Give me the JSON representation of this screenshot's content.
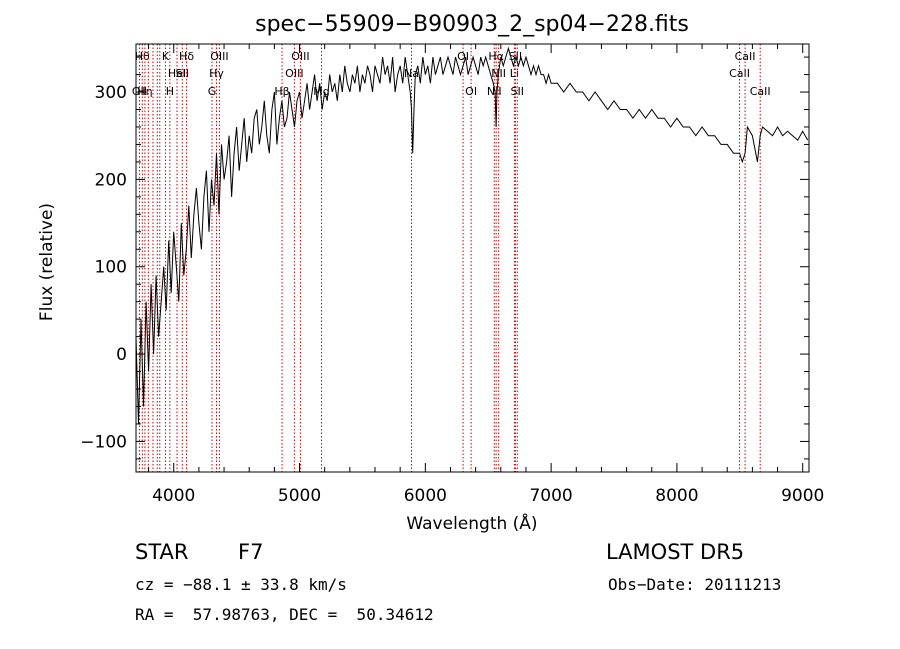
{
  "chart_data": {
    "type": "line",
    "title": "spec−55909−B90903_2_sp04−228.fits",
    "xlabel": "Wavelength (Å)",
    "ylabel": "Flux (relative)",
    "xlim": [
      3700,
      9050
    ],
    "ylim": [
      -135,
      355
    ],
    "xticks": [
      4000,
      5000,
      6000,
      7000,
      8000,
      9000
    ],
    "yticks": [
      -100,
      0,
      100,
      200,
      300
    ],
    "grid": false,
    "line_color": "#000000",
    "marker_color": "#cc0000",
    "series": [
      {
        "x": [
          3700,
          3720,
          3740,
          3760,
          3780,
          3800,
          3820,
          3840,
          3860,
          3880,
          3900,
          3920,
          3940,
          3960,
          3980,
          4000,
          4020,
          4040,
          4060,
          4080,
          4100,
          4120,
          4140,
          4160,
          4180,
          4200,
          4220,
          4240,
          4260,
          4280,
          4300,
          4320,
          4340,
          4360,
          4380,
          4400,
          4420,
          4440,
          4460,
          4480,
          4500,
          4520,
          4540,
          4560,
          4580,
          4600,
          4620,
          4640,
          4660,
          4680,
          4700,
          4720,
          4740,
          4760,
          4780,
          4800,
          4820,
          4840,
          4860,
          4880,
          4900,
          4920,
          4940,
          4960,
          4980,
          5000,
          5020,
          5040,
          5060,
          5080,
          5100,
          5120,
          5140,
          5160,
          5180,
          5200,
          5220,
          5240,
          5260,
          5280,
          5300,
          5320,
          5340,
          5360,
          5380,
          5400,
          5420,
          5440,
          5460,
          5480,
          5500,
          5520,
          5540,
          5560,
          5580,
          5600,
          5620,
          5640,
          5660,
          5680,
          5700,
          5720,
          5740,
          5760,
          5780,
          5800,
          5820,
          5840,
          5860,
          5880,
          5890,
          5900,
          5910,
          5920,
          5940,
          5960,
          5980,
          6000,
          6020,
          6040,
          6060,
          6080,
          6100,
          6120,
          6140,
          6160,
          6180,
          6200,
          6220,
          6240,
          6260,
          6280,
          6300,
          6320,
          6340,
          6360,
          6380,
          6400,
          6420,
          6440,
          6460,
          6480,
          6500,
          6520,
          6540,
          6555,
          6563,
          6570,
          6580,
          6600,
          6620,
          6640,
          6660,
          6680,
          6700,
          6720,
          6740,
          6760,
          6780,
          6800,
          6820,
          6840,
          6860,
          6880,
          6900,
          6920,
          6940,
          6960,
          6980,
          7000,
          7050,
          7100,
          7150,
          7200,
          7250,
          7300,
          7350,
          7400,
          7450,
          7500,
          7550,
          7600,
          7650,
          7700,
          7750,
          7800,
          7850,
          7900,
          7950,
          8000,
          8050,
          8100,
          8150,
          8200,
          8250,
          8300,
          8350,
          8400,
          8450,
          8498,
          8520,
          8542,
          8560,
          8600,
          8640,
          8662,
          8680,
          8720,
          8760,
          8800,
          8840,
          8880,
          8920,
          8960,
          9000,
          9020,
          9040
        ],
        "values": [
          20,
          -80,
          40,
          -60,
          60,
          -20,
          80,
          0,
          90,
          20,
          60,
          100,
          50,
          130,
          70,
          140,
          100,
          60,
          150,
          90,
          120,
          170,
          110,
          160,
          190,
          150,
          120,
          180,
          210,
          140,
          200,
          170,
          230,
          160,
          240,
          200,
          220,
          250,
          180,
          230,
          260,
          210,
          240,
          270,
          220,
          250,
          230,
          270,
          280,
          240,
          260,
          290,
          250,
          230,
          280,
          300,
          240,
          270,
          290,
          260,
          270,
          300,
          280,
          260,
          290,
          300,
          270,
          290,
          310,
          280,
          300,
          320,
          290,
          310,
          280,
          300,
          290,
          320,
          300,
          310,
          290,
          320,
          300,
          330,
          310,
          300,
          320,
          310,
          330,
          300,
          320,
          310,
          330,
          320,
          300,
          330,
          320,
          310,
          340,
          320,
          330,
          310,
          340,
          300,
          320,
          330,
          310,
          340,
          320,
          300,
          280,
          230,
          280,
          320,
          330,
          310,
          340,
          320,
          330,
          310,
          340,
          320,
          330,
          340,
          320,
          330,
          340,
          330,
          320,
          340,
          330,
          320,
          330,
          340,
          320,
          330,
          340,
          330,
          320,
          340,
          330,
          340,
          330,
          320,
          310,
          300,
          260,
          300,
          320,
          340,
          330,
          340,
          350,
          340,
          330,
          340,
          330,
          340,
          330,
          340,
          330,
          320,
          330,
          320,
          330,
          320,
          320,
          310,
          320,
          310,
          310,
          300,
          310,
          300,
          300,
          290,
          300,
          290,
          280,
          290,
          280,
          280,
          270,
          280,
          270,
          280,
          270,
          270,
          260,
          270,
          260,
          260,
          250,
          260,
          250,
          250,
          240,
          240,
          230,
          230,
          220,
          230,
          260,
          250,
          220,
          250,
          260,
          255,
          250,
          260,
          250,
          255,
          250,
          245,
          255,
          250,
          245
        ]
      }
    ],
    "line_markers": [
      {
        "lambda": 3727,
        "label": "OII",
        "tier": 2
      },
      {
        "lambda": 3750,
        "label": "Hθ",
        "tier": 0
      },
      {
        "lambda": 3771,
        "label": "Hη",
        "tier": 2
      },
      {
        "lambda": 3798,
        "label": "",
        "tier": 0
      },
      {
        "lambda": 3835,
        "label": "",
        "tier": 0
      },
      {
        "lambda": 3869,
        "label": "",
        "tier": 0
      },
      {
        "lambda": 3889,
        "label": "",
        "tier": 0
      },
      {
        "lambda": 3934,
        "label": "K",
        "tier": 0
      },
      {
        "lambda": 3969,
        "label": "H",
        "tier": 2
      },
      {
        "lambda": 4026,
        "label": "HeI",
        "tier": 1
      },
      {
        "lambda": 4068,
        "label": "SII",
        "tier": 1
      },
      {
        "lambda": 4102,
        "label": "Hδ",
        "tier": 0
      },
      {
        "lambda": 4304,
        "label": "G",
        "tier": 2
      },
      {
        "lambda": 4340,
        "label": "Hγ",
        "tier": 1
      },
      {
        "lambda": 4363,
        "label": "OIII",
        "tier": 0
      },
      {
        "lambda": 4861,
        "label": "Hβ",
        "tier": 2
      },
      {
        "lambda": 4959,
        "label": "OIII",
        "tier": 1
      },
      {
        "lambda": 5007,
        "label": "OIII",
        "tier": 0
      },
      {
        "lambda": 5175,
        "label": "Mg",
        "tier": 2
      },
      {
        "lambda": 5890,
        "label": "Na",
        "tier": 1
      },
      {
        "lambda": 6300,
        "label": "OI",
        "tier": 0
      },
      {
        "lambda": 6364,
        "label": "OI",
        "tier": 2
      },
      {
        "lambda": 6548,
        "label": "NII",
        "tier": 2
      },
      {
        "lambda": 6563,
        "label": "Hα",
        "tier": 0
      },
      {
        "lambda": 6583,
        "label": "NII",
        "tier": 1
      },
      {
        "lambda": 6708,
        "label": "Li",
        "tier": 1
      },
      {
        "lambda": 6716,
        "label": "SII",
        "tier": 0
      },
      {
        "lambda": 6731,
        "label": "SII",
        "tier": 2
      },
      {
        "lambda": 8498,
        "label": "CaII",
        "tier": 1
      },
      {
        "lambda": 8542,
        "label": "CaII",
        "tier": 0
      },
      {
        "lambda": 8662,
        "label": "CaII",
        "tier": 2
      }
    ]
  },
  "info": {
    "object_class": "STAR",
    "subclass": "F7",
    "survey": "LAMOST DR5",
    "cz": "cz = −88.1 ± 33.8 km/s",
    "obs_date": "Obs−Date: 20111213",
    "radec": "RA =  57.98763, DEC =  50.34612"
  }
}
